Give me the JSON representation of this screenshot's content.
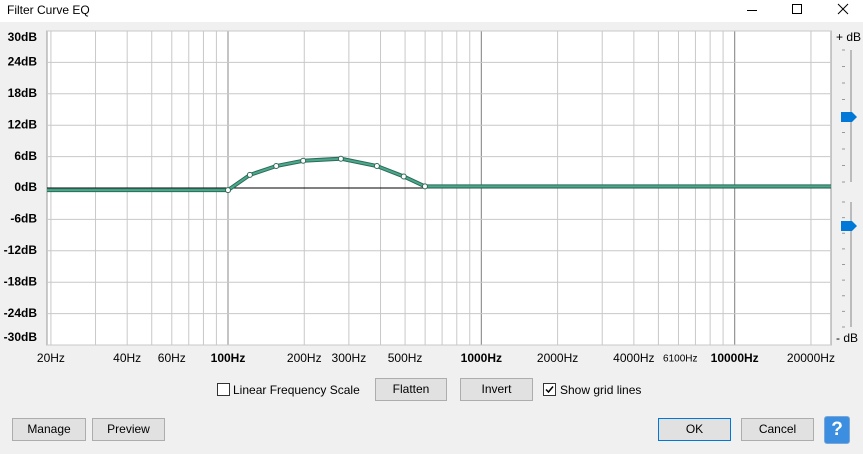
{
  "window": {
    "title": "Filter Curve EQ"
  },
  "chart_data": {
    "type": "line",
    "xscale": "log",
    "grid": true,
    "xlim": [
      19.3,
      24000
    ],
    "ylim": [
      -30,
      30
    ],
    "xticks": [
      {
        "value": 20,
        "label": "20Hz"
      },
      {
        "value": 40,
        "label": "40Hz"
      },
      {
        "value": 60,
        "label": "60Hz"
      },
      {
        "value": 100,
        "label": "100Hz",
        "bold": true
      },
      {
        "value": 200,
        "label": "200Hz"
      },
      {
        "value": 300,
        "label": "300Hz"
      },
      {
        "value": 500,
        "label": "500Hz"
      },
      {
        "value": 1000,
        "label": "1000Hz",
        "bold": true
      },
      {
        "value": 2000,
        "label": "2000Hz"
      },
      {
        "value": 4000,
        "label": "4000Hz"
      },
      {
        "value": 6100,
        "label": "6100Hz",
        "small": true
      },
      {
        "value": 10000,
        "label": "10000Hz",
        "bold": true
      },
      {
        "value": 20000,
        "label": "20000Hz"
      }
    ],
    "xgrid": [
      20,
      30,
      40,
      50,
      60,
      70,
      80,
      90,
      100,
      200,
      300,
      400,
      500,
      600,
      700,
      800,
      900,
      1000,
      2000,
      3000,
      4000,
      5000,
      6000,
      7000,
      8000,
      9000,
      10000,
      20000
    ],
    "yticks": [
      {
        "value": 30,
        "label": "30dB"
      },
      {
        "value": 24,
        "label": "24dB"
      },
      {
        "value": 18,
        "label": "18dB"
      },
      {
        "value": 12,
        "label": "12dB"
      },
      {
        "value": 6,
        "label": "6dB"
      },
      {
        "value": 0,
        "label": "0dB"
      },
      {
        "value": -6,
        "label": "-6dB"
      },
      {
        "value": -12,
        "label": "-12dB"
      },
      {
        "value": -18,
        "label": "-18dB"
      },
      {
        "value": -24,
        "label": "-24dB"
      },
      {
        "value": -30,
        "label": "-30dB"
      }
    ],
    "x": [
      19.3,
      100,
      122,
      155,
      198,
      279,
      387,
      494,
      599,
      24000
    ],
    "values": [
      -0.4,
      -0.4,
      2.5,
      4.2,
      5.2,
      5.6,
      4.2,
      2.2,
      0.3,
      0.3
    ],
    "color": "#4aa88c"
  },
  "sliders": {
    "top_label": "+ dB",
    "bottom_label": "- dB"
  },
  "controls": {
    "linear_scale": {
      "label": "Linear Frequency Scale",
      "checked": false
    },
    "flatten": "Flatten",
    "invert": "Invert",
    "show_grid": {
      "label": "Show grid lines",
      "checked": true
    },
    "manage": "Manage",
    "preview": "Preview",
    "ok": "OK",
    "cancel": "Cancel",
    "help": "?"
  }
}
